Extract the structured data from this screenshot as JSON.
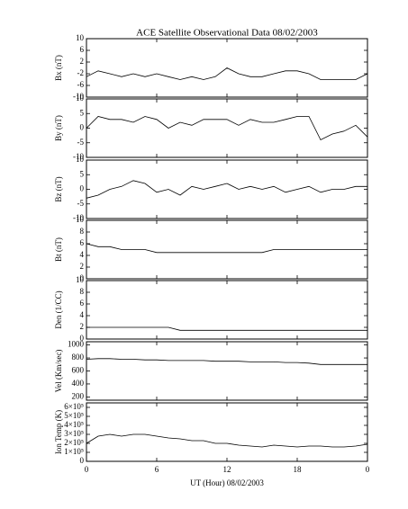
{
  "title": "ACE Satellite Observational Data   08/02/2003",
  "x_axis": {
    "label": "UT (Hour)   08/02/2003",
    "xlim": [
      0,
      24
    ],
    "xticks": [
      0,
      6,
      12,
      18,
      {
        "value": 24,
        "label": "0"
      }
    ]
  },
  "chart_data": [
    {
      "type": "line",
      "ylabel": "Bx (nT)",
      "ylim": [
        -10,
        10
      ],
      "yticks": [
        -10,
        -6,
        -2,
        2,
        6,
        10
      ],
      "x": [
        0,
        1,
        2,
        3,
        4,
        5,
        6,
        7,
        8,
        9,
        10,
        11,
        12,
        13,
        14,
        15,
        16,
        17,
        18,
        19,
        20,
        21,
        22,
        23,
        24
      ],
      "values": [
        -3,
        -1,
        -2,
        -3,
        -2,
        -3,
        -2,
        -3,
        -4,
        -3,
        -4,
        -3,
        0,
        -2,
        -3,
        -3,
        -2,
        -1,
        -1,
        -2,
        -4,
        -4,
        -4,
        -4,
        -2
      ]
    },
    {
      "type": "line",
      "ylabel": "By (nT)",
      "ylim": [
        -10,
        10
      ],
      "yticks": [
        -10,
        -5,
        0,
        5,
        10
      ],
      "x": [
        0,
        1,
        2,
        3,
        4,
        5,
        6,
        7,
        8,
        9,
        10,
        11,
        12,
        13,
        14,
        15,
        16,
        17,
        18,
        19,
        20,
        21,
        22,
        23,
        24
      ],
      "values": [
        0,
        4,
        3,
        3,
        2,
        4,
        3,
        0,
        2,
        1,
        3,
        3,
        3,
        1,
        3,
        2,
        2,
        3,
        4,
        4,
        -4,
        -2,
        -1,
        1,
        -3
      ]
    },
    {
      "type": "line",
      "ylabel": "Bz (nT)",
      "ylim": [
        -10,
        10
      ],
      "yticks": [
        -10,
        -5,
        0,
        5,
        10
      ],
      "x": [
        0,
        1,
        2,
        3,
        4,
        5,
        6,
        7,
        8,
        9,
        10,
        11,
        12,
        13,
        14,
        15,
        16,
        17,
        18,
        19,
        20,
        21,
        22,
        23,
        24
      ],
      "values": [
        -3,
        -2,
        0,
        1,
        3,
        2,
        -1,
        0,
        -2,
        1,
        0,
        1,
        2,
        0,
        1,
        0,
        1,
        -1,
        0,
        1,
        -1,
        0,
        0,
        1,
        1
      ]
    },
    {
      "type": "line",
      "ylabel": "Bt (nT)",
      "ylim": [
        0,
        10
      ],
      "yticks": [
        0,
        2,
        4,
        6,
        8,
        10
      ],
      "x": [
        0,
        1,
        2,
        3,
        4,
        5,
        6,
        7,
        8,
        9,
        10,
        11,
        12,
        13,
        14,
        15,
        16,
        17,
        18,
        19,
        20,
        21,
        22,
        23,
        24
      ],
      "values": [
        6,
        5.5,
        5.5,
        5,
        5,
        5,
        4.5,
        4.5,
        4.5,
        4.5,
        4.5,
        4.5,
        4.5,
        4.5,
        4.5,
        4.5,
        5,
        5,
        5,
        5,
        5,
        5,
        5,
        5,
        5
      ]
    },
    {
      "type": "line",
      "ylabel": "Den (1/CC)",
      "ylim": [
        0,
        10
      ],
      "yticks": [
        0,
        2,
        4,
        6,
        8,
        10
      ],
      "x": [
        0,
        1,
        2,
        3,
        4,
        5,
        6,
        7,
        8,
        9,
        10,
        11,
        12,
        13,
        14,
        15,
        16,
        17,
        18,
        19,
        20,
        21,
        22,
        23,
        24
      ],
      "values": [
        2,
        2,
        2,
        2,
        2,
        2,
        2,
        2,
        1.5,
        1.5,
        1.5,
        1.5,
        1.5,
        1.5,
        1.5,
        1.5,
        1.5,
        1.5,
        1.5,
        1.5,
        1.5,
        1.5,
        1.5,
        1.5,
        1.5
      ]
    },
    {
      "type": "line",
      "ylabel": "Vel (Km/sec)",
      "ylim": [
        150,
        1050
      ],
      "yticks": [
        200,
        400,
        600,
        800,
        1000
      ],
      "x": [
        0,
        1,
        2,
        3,
        4,
        5,
        6,
        7,
        8,
        9,
        10,
        11,
        12,
        13,
        14,
        15,
        16,
        17,
        18,
        19,
        20,
        21,
        22,
        23,
        24
      ],
      "values": [
        780,
        790,
        790,
        780,
        780,
        770,
        770,
        760,
        760,
        760,
        760,
        750,
        750,
        750,
        740,
        740,
        740,
        730,
        730,
        720,
        700,
        700,
        700,
        700,
        700
      ]
    },
    {
      "type": "line",
      "ylabel": "Ion Temp (K)",
      "ylim": [
        0,
        650000
      ],
      "yticks": [
        0,
        {
          "value": 100000,
          "label": "1×10⁵"
        },
        {
          "value": 200000,
          "label": "2×10⁵"
        },
        {
          "value": 300000,
          "label": "3×10⁵"
        },
        {
          "value": 400000,
          "label": "4×10⁵"
        },
        {
          "value": 500000,
          "label": "5×10⁵"
        },
        {
          "value": 600000,
          "label": "6×10⁵"
        }
      ],
      "x": [
        0,
        1,
        2,
        3,
        4,
        5,
        6,
        7,
        8,
        9,
        10,
        11,
        12,
        13,
        14,
        15,
        16,
        17,
        18,
        19,
        20,
        21,
        22,
        23,
        24
      ],
      "values": [
        200000,
        280000,
        300000,
        280000,
        300000,
        300000,
        280000,
        260000,
        250000,
        230000,
        230000,
        200000,
        200000,
        180000,
        170000,
        160000,
        180000,
        170000,
        160000,
        170000,
        170000,
        160000,
        160000,
        170000,
        190000
      ]
    }
  ]
}
